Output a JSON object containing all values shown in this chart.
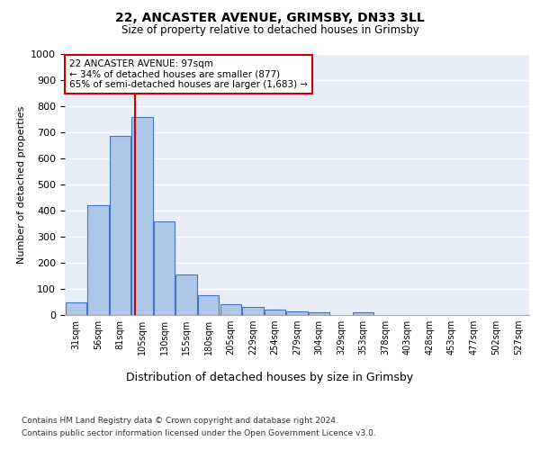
{
  "title1": "22, ANCASTER AVENUE, GRIMSBY, DN33 3LL",
  "title2": "Size of property relative to detached houses in Grimsby",
  "xlabel": "Distribution of detached houses by size in Grimsby",
  "ylabel": "Number of detached properties",
  "categories": [
    "31sqm",
    "56sqm",
    "81sqm",
    "105sqm",
    "130sqm",
    "155sqm",
    "180sqm",
    "205sqm",
    "229sqm",
    "254sqm",
    "279sqm",
    "304sqm",
    "329sqm",
    "353sqm",
    "378sqm",
    "403sqm",
    "428sqm",
    "453sqm",
    "477sqm",
    "502sqm",
    "527sqm"
  ],
  "values": [
    50,
    420,
    685,
    760,
    360,
    155,
    75,
    40,
    30,
    20,
    15,
    10,
    0,
    10,
    0,
    0,
    0,
    0,
    0,
    0,
    0
  ],
  "bar_color": "#aec6e8",
  "bar_edge_color": "#4472c4",
  "vline_x": 2.66,
  "vline_color": "#cc0000",
  "annotation_text": "22 ANCASTER AVENUE: 97sqm\n← 34% of detached houses are smaller (877)\n65% of semi-detached houses are larger (1,683) →",
  "annotation_box_color": "#ffffff",
  "annotation_box_edge": "#cc0000",
  "ylim": [
    0,
    1000
  ],
  "yticks": [
    0,
    100,
    200,
    300,
    400,
    500,
    600,
    700,
    800,
    900,
    1000
  ],
  "footer1": "Contains HM Land Registry data © Crown copyright and database right 2024.",
  "footer2": "Contains public sector information licensed under the Open Government Licence v3.0.",
  "bg_color": "#e8eef8",
  "grid_color": "#ffffff"
}
